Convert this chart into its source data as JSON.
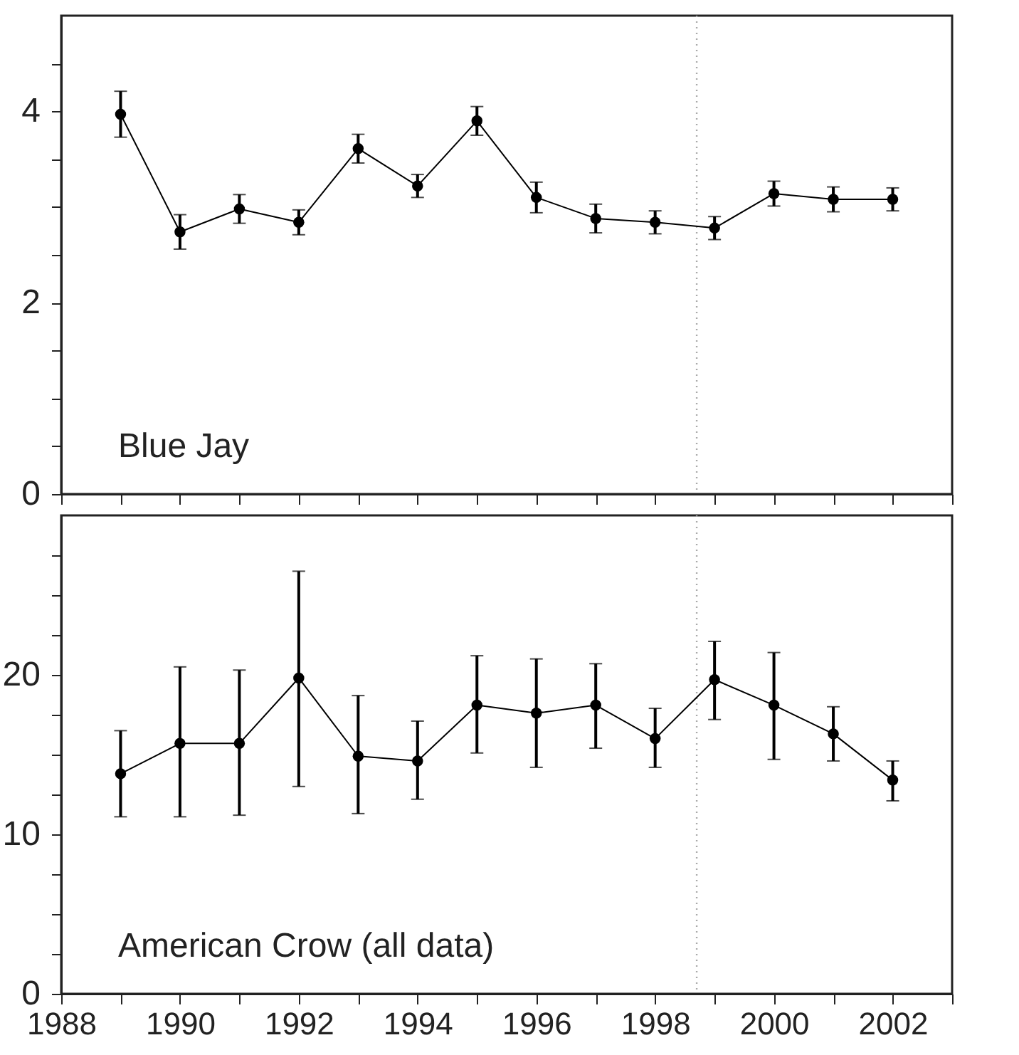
{
  "chart_data": [
    {
      "type": "line",
      "x": [
        1989,
        1990,
        1991,
        1992,
        1993,
        1994,
        1995,
        1996,
        1997,
        1998,
        1999,
        2000,
        2001,
        2002
      ],
      "series": [
        {
          "color": "#000000",
          "values": [
            3.97,
            2.74,
            2.98,
            2.84,
            3.61,
            3.22,
            3.9,
            3.1,
            2.88,
            2.84,
            2.78,
            3.14,
            3.08,
            3.08
          ],
          "errors": [
            0.24,
            0.18,
            0.15,
            0.13,
            0.15,
            0.12,
            0.15,
            0.16,
            0.15,
            0.12,
            0.12,
            0.13,
            0.13,
            0.12
          ]
        }
      ],
      "xlim": [
        1988,
        2003
      ],
      "xticks": [
        1988,
        {
          "value": 1989,
          "label": null
        },
        1990,
        {
          "value": 1991,
          "label": null
        },
        1992,
        {
          "value": 1993,
          "label": null
        },
        1994,
        {
          "value": 1995,
          "label": null
        },
        1996,
        {
          "value": 1997,
          "label": null
        },
        1998,
        {
          "value": 1999,
          "label": null
        },
        2000,
        {
          "value": 2001,
          "label": null
        },
        2002,
        {
          "value": 2003,
          "label": null
        }
      ],
      "ylim": [
        0,
        5
      ],
      "yticks": [
        0,
        {
          "value": 0.5,
          "label": null
        },
        {
          "value": 1,
          "label": null
        },
        {
          "value": 1.5,
          "label": null
        },
        2,
        {
          "value": 2.5,
          "label": null
        },
        {
          "value": 3,
          "label": null
        },
        {
          "value": 3.5,
          "label": null
        },
        4,
        {
          "value": 4.5,
          "label": null
        }
      ],
      "tick_labels": "y",
      "marker": "circle",
      "line_style": "solid",
      "grid": false,
      "ref_lines": [
        {
          "axis": "x",
          "value": 1998.7,
          "color": "#aaaaaa",
          "line_style": "dotted"
        }
      ],
      "annotations": [
        "Blue Jay"
      ]
    },
    {
      "type": "line",
      "x": [
        1989,
        1990,
        1991,
        1992,
        1993,
        1994,
        1995,
        1996,
        1997,
        1998,
        1999,
        2000,
        2001,
        2002
      ],
      "series": [
        {
          "color": "#000000",
          "values": [
            13.8,
            15.7,
            15.7,
            19.8,
            14.9,
            14.6,
            18.1,
            17.6,
            18.1,
            16.0,
            19.7,
            18.1,
            16.3,
            13.4
          ],
          "errors": [
            [
              11.1,
              16.5
            ],
            [
              11.1,
              20.5
            ],
            [
              11.2,
              20.3
            ],
            [
              13.0,
              26.5
            ],
            [
              11.3,
              18.7
            ],
            [
              12.2,
              17.1
            ],
            [
              15.1,
              21.2
            ],
            [
              14.2,
              21.0
            ],
            [
              15.4,
              20.7
            ],
            [
              14.2,
              17.9
            ],
            [
              17.2,
              22.1
            ],
            [
              14.7,
              21.4
            ],
            [
              14.6,
              18.0
            ],
            [
              12.1,
              14.6
            ]
          ]
        }
      ],
      "xlim": [
        1988,
        2003
      ],
      "xticks": [
        1988,
        {
          "value": 1989,
          "label": null
        },
        1990,
        {
          "value": 1991,
          "label": null
        },
        1992,
        {
          "value": 1993,
          "label": null
        },
        1994,
        {
          "value": 1995,
          "label": null
        },
        1996,
        {
          "value": 1997,
          "label": null
        },
        1998,
        {
          "value": 1999,
          "label": null
        },
        2000,
        {
          "value": 2001,
          "label": null
        },
        2002,
        {
          "value": 2003,
          "label": null
        }
      ],
      "ylim": [
        0,
        30
      ],
      "yticks": [
        0,
        {
          "value": 2.5,
          "label": null
        },
        {
          "value": 5,
          "label": null
        },
        {
          "value": 7.5,
          "label": null
        },
        10,
        {
          "value": 12.5,
          "label": null
        },
        {
          "value": 15,
          "label": null
        },
        {
          "value": 17.5,
          "label": null
        },
        20,
        {
          "value": 22.5,
          "label": null
        },
        {
          "value": 25,
          "label": null
        },
        {
          "value": 27.5,
          "label": null
        }
      ],
      "marker": "circle",
      "line_style": "solid",
      "grid": false,
      "ref_lines": [
        {
          "axis": "x",
          "value": 1998.7,
          "color": "#aaaaaa",
          "line_style": "dotted"
        }
      ],
      "annotations": [
        "American Crow (all data)"
      ]
    }
  ]
}
